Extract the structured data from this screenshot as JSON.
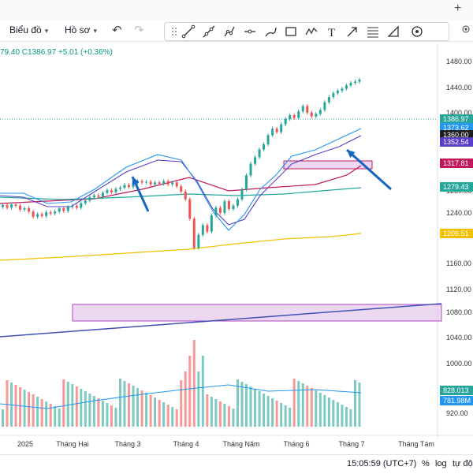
{
  "window": {
    "plus_icon": "plus-icon",
    "gear_icon": "gear-icon"
  },
  "toolbar": {
    "chart_menu": "Biểu đồ",
    "profile_menu": "Hồ sơ"
  },
  "legend": {
    "ohlc_text": "79.40 C1386.97 +5.01 (+0.36%)"
  },
  "price_axis": {
    "ticks": [
      "1480.00",
      "1440.00",
      "1400.00",
      "1360.00",
      "1320.00",
      "1280.00",
      "1240.00",
      "1200.00",
      "1160.00",
      "1120.00",
      "1080.00",
      "1040.00",
      "1000.00",
      "960.00",
      "920.00"
    ],
    "labels": [
      {
        "text": "1386.97",
        "color": "#26a69a"
      },
      {
        "text": "1373.62",
        "color": "#2196f3"
      },
      {
        "text": "1360.00",
        "color": "#1e1e1e"
      },
      {
        "text": "1352.54",
        "color": "#5b3cc4"
      },
      {
        "text": "1317.81",
        "color": "#c2185b"
      },
      {
        "text": "1279.43",
        "color": "#26a69a"
      },
      {
        "text": "1206.51",
        "color": "#f2c200"
      },
      {
        "text": "828.013",
        "color": "#26a69a"
      },
      {
        "text": "781.98M",
        "color": "#2196f3"
      }
    ]
  },
  "time_axis": {
    "labels": [
      "2025",
      "Tháng Hai",
      "Tháng 3",
      "Tháng 4",
      "Tháng Năm",
      "Tháng 6",
      "Tháng 7",
      "Tháng Tám"
    ]
  },
  "status": {
    "time": "15:05:59 (UTC+7)",
    "percent": "%",
    "log": "log",
    "auto": "tự độ"
  },
  "colors": {
    "up": "#26a69a",
    "down": "#ef5350",
    "zone_fill": "#e1bee7",
    "zone_border": "#ab47bc",
    "trendline": "#3f51b5",
    "arrow": "#1565c0",
    "ma_yellow": "#f2c200",
    "ma_red": "#c2185b",
    "ma_teal": "#26a69a"
  }
}
